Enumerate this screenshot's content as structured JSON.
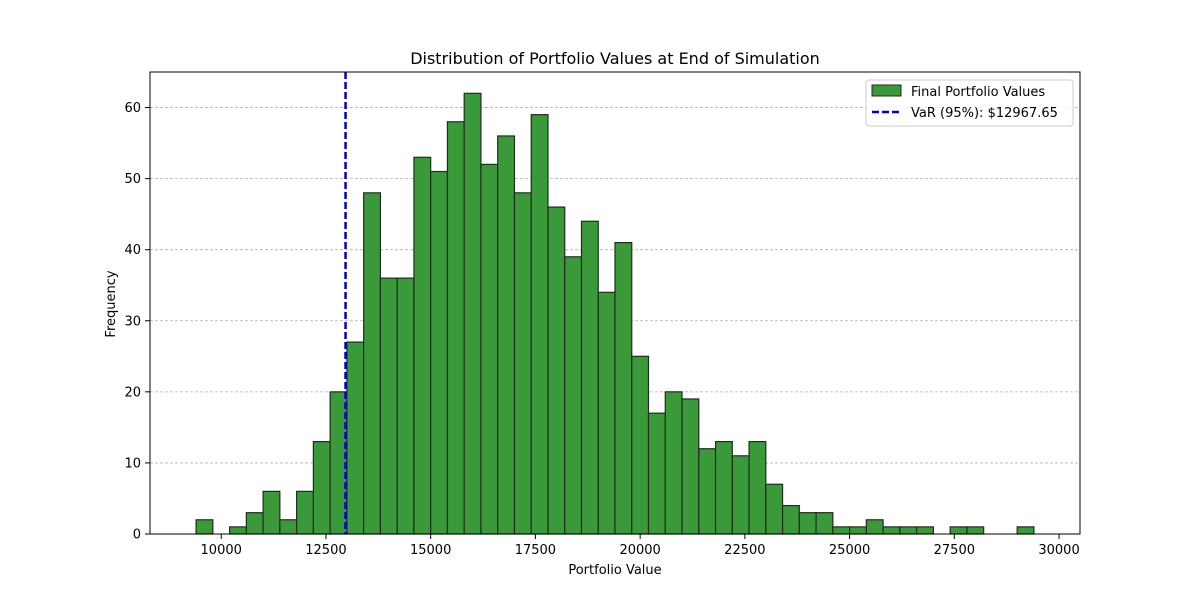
{
  "chart_data": {
    "type": "bar",
    "title": "Distribution of Portfolio Values at End of Simulation",
    "xlabel": "Portfolio Value",
    "ylabel": "Frequency",
    "xlim": [
      8300,
      30500
    ],
    "ylim": [
      0,
      65
    ],
    "xticks": [
      10000,
      12500,
      15000,
      17500,
      20000,
      22500,
      25000,
      27500,
      30000
    ],
    "yticks": [
      0,
      10,
      20,
      30,
      40,
      50,
      60
    ],
    "grid": "y-dashed",
    "legend_position": "top-right",
    "bar_color": "#3a9a3a",
    "bar_edge_color": "#1e2e1e",
    "var_color": "#0000cc",
    "bins": {
      "start": 9400,
      "width": 400,
      "counts": [
        2,
        0,
        1,
        3,
        6,
        2,
        6,
        13,
        20,
        27,
        48,
        36,
        36,
        53,
        51,
        58,
        62,
        52,
        56,
        48,
        59,
        46,
        39,
        44,
        34,
        41,
        25,
        17,
        20,
        19,
        12,
        13,
        11,
        13,
        7,
        4,
        3,
        3,
        1,
        1,
        2,
        1,
        1,
        1,
        0,
        1,
        1,
        0,
        0,
        1
      ]
    },
    "var_value": 12967.65,
    "legend": {
      "bars_label": "Final Portfolio Values",
      "var_label": "VaR (95%): $12967.65"
    }
  }
}
